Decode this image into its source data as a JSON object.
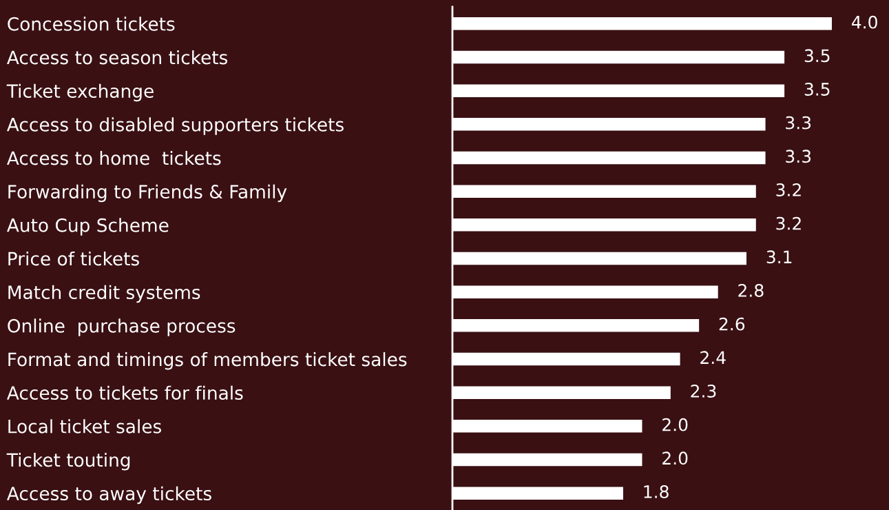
{
  "chart_data": {
    "type": "bar",
    "orientation": "horizontal",
    "grid": false,
    "legend": false,
    "tick_labels": "y",
    "categories": [
      "Concession tickets",
      "Access to season tickets",
      "Ticket exchange",
      "Access to disabled supporters tickets",
      "Access to home  tickets",
      "Forwarding to Friends & Family",
      "Auto Cup Scheme",
      "Price of tickets",
      "Match credit systems",
      "Online  purchase process",
      "Format and timings of members ticket sales",
      "Access to tickets for finals",
      "Local ticket sales",
      "Ticket touting",
      "Access to away tickets"
    ],
    "values": [
      4.0,
      3.5,
      3.5,
      3.3,
      3.3,
      3.2,
      3.2,
      3.1,
      2.8,
      2.6,
      2.4,
      2.3,
      2.0,
      2.0,
      1.8
    ],
    "value_labels": [
      "4.0",
      "3.5",
      "3.5",
      "3.3",
      "3.3",
      "3.2",
      "3.2",
      "3.1",
      "2.8",
      "2.6",
      "2.4",
      "2.3",
      "2.0",
      "2.0",
      "1.8"
    ],
    "color": "#ffffff"
  }
}
